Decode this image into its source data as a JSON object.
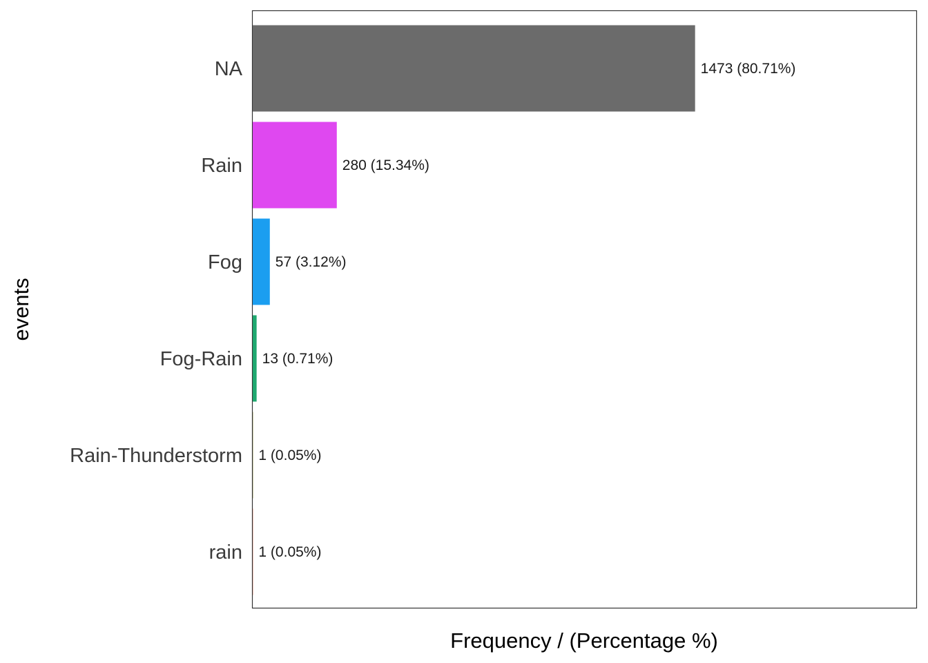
{
  "chart_data": {
    "type": "bar",
    "orientation": "horizontal",
    "title": "",
    "xlabel": "Frequency / (Percentage %)",
    "ylabel": "events",
    "categories": [
      "NA",
      "Rain",
      "Fog",
      "Fog-Rain",
      "Rain-Thunderstorm",
      "rain"
    ],
    "values": [
      1473,
      280,
      57,
      13,
      1,
      1
    ],
    "percentages": [
      80.71,
      15.34,
      3.12,
      0.71,
      0.05,
      0.05
    ],
    "data_labels": [
      "1473 (80.71%)",
      "280 (15.34%)",
      "57 (3.12%)",
      "13 (0.71%)",
      "1 (0.05%)",
      "1 (0.05%)"
    ],
    "colors": [
      "#6b6b6b",
      "#df48f0",
      "#1b9ef0",
      "#1fa86f",
      "#8c8c3a",
      "#e07a5f"
    ],
    "xlim": [
      0,
      2209.5
    ],
    "grid": false,
    "legend": "none"
  }
}
